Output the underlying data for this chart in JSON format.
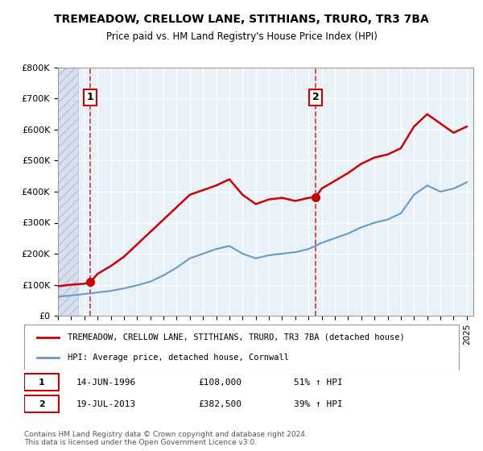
{
  "title": "TREMEADOW, CRELLOW LANE, STITHIANS, TRURO, TR3 7BA",
  "subtitle": "Price paid vs. HM Land Registry's House Price Index (HPI)",
  "ylabel": "",
  "xlabel": "",
  "ylim": [
    0,
    800000
  ],
  "xlim": [
    1994,
    2025.5
  ],
  "yticks": [
    0,
    100000,
    200000,
    300000,
    400000,
    500000,
    600000,
    700000,
    800000
  ],
  "ytick_labels": [
    "£0",
    "£100K",
    "£200K",
    "£300K",
    "£400K",
    "£500K",
    "£600K",
    "£700K",
    "£800K"
  ],
  "xticks": [
    1994,
    1995,
    1996,
    1997,
    1998,
    1999,
    2000,
    2001,
    2002,
    2003,
    2004,
    2005,
    2006,
    2007,
    2008,
    2009,
    2010,
    2011,
    2012,
    2013,
    2014,
    2015,
    2016,
    2017,
    2018,
    2019,
    2020,
    2021,
    2022,
    2023,
    2024,
    2025
  ],
  "hpi_color": "#6699cc",
  "price_color": "#cc0000",
  "vline_color": "#cc0000",
  "point1_x": 1996.45,
  "point1_y": 108000,
  "point2_x": 2013.54,
  "point2_y": 382500,
  "annotation1_label": "1",
  "annotation2_label": "2",
  "legend_line1": "TREMEADOW, CRELLOW LANE, STITHIANS, TRURO, TR3 7BA (detached house)",
  "legend_line2": "HPI: Average price, detached house, Cornwall",
  "table_row1": "1    14-JUN-1996    £108,000    51% ↑ HPI",
  "table_row2": "2    19-JUL-2013    £382,500    39% ↑ HPI",
  "footnote": "Contains HM Land Registry data © Crown copyright and database right 2024.\nThis data is licensed under the Open Government Licence v3.0.",
  "background_color": "#ffffff",
  "plot_bg_color": "#e8f0f8",
  "hatch_region_end": 1995.5,
  "grid_color": "#ffffff",
  "hpi_years": [
    1994,
    1995,
    1996,
    1997,
    1998,
    1999,
    2000,
    2001,
    2002,
    2003,
    2004,
    2005,
    2006,
    2007,
    2008,
    2009,
    2010,
    2011,
    2012,
    2013,
    2014,
    2015,
    2016,
    2017,
    2018,
    2019,
    2020,
    2021,
    2022,
    2023,
    2024,
    2025
  ],
  "hpi_values": [
    62000,
    65000,
    70000,
    75000,
    80000,
    88000,
    98000,
    110000,
    130000,
    155000,
    185000,
    200000,
    215000,
    225000,
    200000,
    185000,
    195000,
    200000,
    205000,
    215000,
    235000,
    250000,
    265000,
    285000,
    300000,
    310000,
    330000,
    390000,
    420000,
    400000,
    410000,
    430000
  ],
  "price_years": [
    1994,
    1995,
    1996,
    1996.45,
    1997,
    1998,
    1999,
    2000,
    2001,
    2002,
    2003,
    2004,
    2005,
    2006,
    2007,
    2008,
    2009,
    2010,
    2011,
    2012,
    2013,
    2013.54,
    2014,
    2015,
    2016,
    2017,
    2018,
    2019,
    2020,
    2021,
    2022,
    2023,
    2024,
    2025
  ],
  "price_values": [
    95000,
    100000,
    103000,
    108000,
    135000,
    160000,
    190000,
    230000,
    270000,
    310000,
    350000,
    390000,
    405000,
    420000,
    440000,
    390000,
    360000,
    375000,
    380000,
    370000,
    380000,
    382500,
    410000,
    435000,
    460000,
    490000,
    510000,
    520000,
    540000,
    610000,
    650000,
    620000,
    590000,
    610000
  ]
}
